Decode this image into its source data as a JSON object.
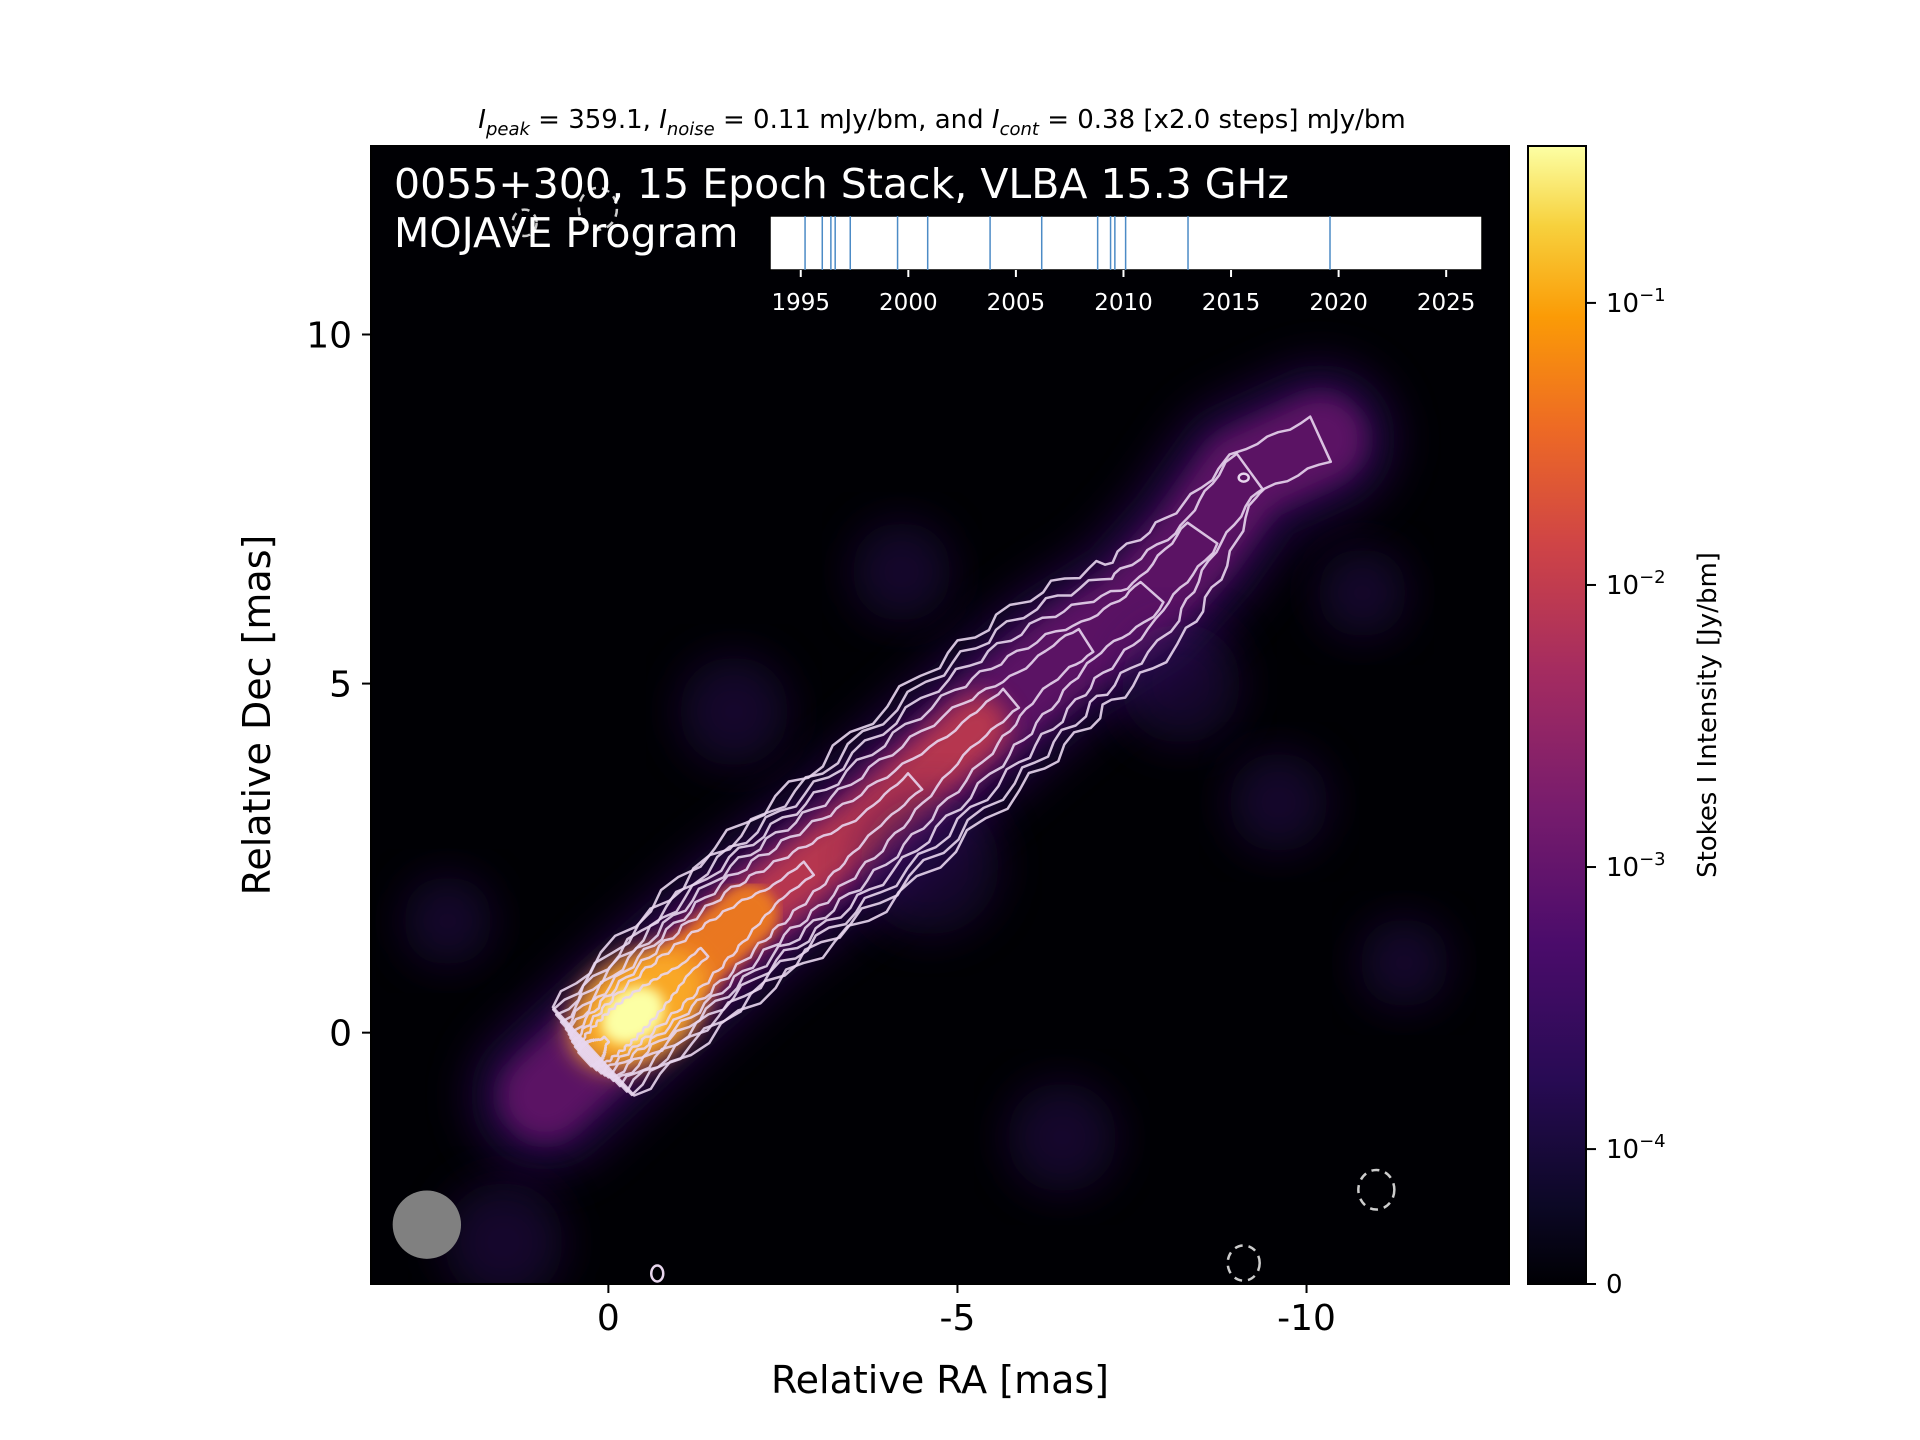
{
  "chart_data": {
    "type": "heatmap",
    "header": {
      "peak_label": "I",
      "peak_sub": "peak",
      "peak_value": " = 359.1, ",
      "noise_label": "I",
      "noise_sub": "noise",
      "noise_value": " = 0.11 mJy/bm, and ",
      "cont_label": "I",
      "cont_sub": "cont",
      "cont_value": " = 0.38 [x2.0 steps] mJy/bm"
    },
    "overlay_title_line1": "0055+300, 15 Epoch Stack, VLBA 15.3 GHz",
    "overlay_title_line2": "MOJAVE Program",
    "xlabel": "Relative RA [mas]",
    "ylabel": "Relative Dec [mas]",
    "xlim": [
      3.4,
      -12.9
    ],
    "ylim": [
      -3.6,
      12.7
    ],
    "x_ticks": [
      0,
      -5,
      -10
    ],
    "x_tick_labels": [
      "0",
      "-5",
      "-10"
    ],
    "y_ticks": [
      0,
      5,
      10
    ],
    "y_tick_labels": [
      "0",
      "5",
      "10"
    ],
    "colormap": "inferno",
    "colorbar": {
      "label": "Stokes I Intensity [Jy/bm]",
      "scale": "log",
      "tick_values": [
        0,
        0.0001,
        0.001,
        0.01,
        0.1
      ],
      "tick_labels": [
        {
          "key": "zero",
          "base": "0",
          "exp": ""
        },
        {
          "key": "e-4",
          "base": "10",
          "exp": "−4"
        },
        {
          "key": "e-3",
          "base": "10",
          "exp": "−3"
        },
        {
          "key": "e-2",
          "base": "10",
          "exp": "−2"
        },
        {
          "key": "e-1",
          "base": "10",
          "exp": "−1"
        }
      ]
    },
    "peak_position": [
      -0.35,
      0.25
    ],
    "jet_axis_points": [
      [
        0.9,
        -0.9
      ],
      [
        -0.35,
        0.25
      ],
      [
        -2.0,
        1.7
      ],
      [
        -3.6,
        2.9
      ],
      [
        -5.3,
        4.4
      ],
      [
        -6.5,
        5.4
      ],
      [
        -7.6,
        6.1
      ],
      [
        -8.4,
        7.0
      ],
      [
        -9.1,
        8.0
      ],
      [
        -10.2,
        8.5
      ]
    ],
    "contour_levels_mJy": [
      0.38,
      0.76,
      1.52,
      3.04,
      6.08,
      12.16,
      24.32,
      48.64,
      97.28,
      194.56
    ],
    "beam": {
      "x": 2.6,
      "y": -2.75,
      "major_mas": 0.75,
      "minor_mas": 0.75,
      "color": "#808080"
    },
    "epoch_timeline": {
      "range": [
        1994.5,
        2026.2
      ],
      "tick_values": [
        1995,
        2000,
        2005,
        2010,
        2015,
        2020,
        2025
      ],
      "tick_labels": [
        "1995",
        "2000",
        "2005",
        "2010",
        "2015",
        "2020",
        "2025"
      ],
      "epochs": [
        1995.2,
        1996.0,
        1996.4,
        1996.6,
        1997.3,
        1999.5,
        2000.9,
        2003.8,
        2006.2,
        2008.8,
        2009.4,
        2009.6,
        2010.1,
        2013.0,
        2019.6
      ],
      "line_color": "#4c8bc6"
    }
  }
}
